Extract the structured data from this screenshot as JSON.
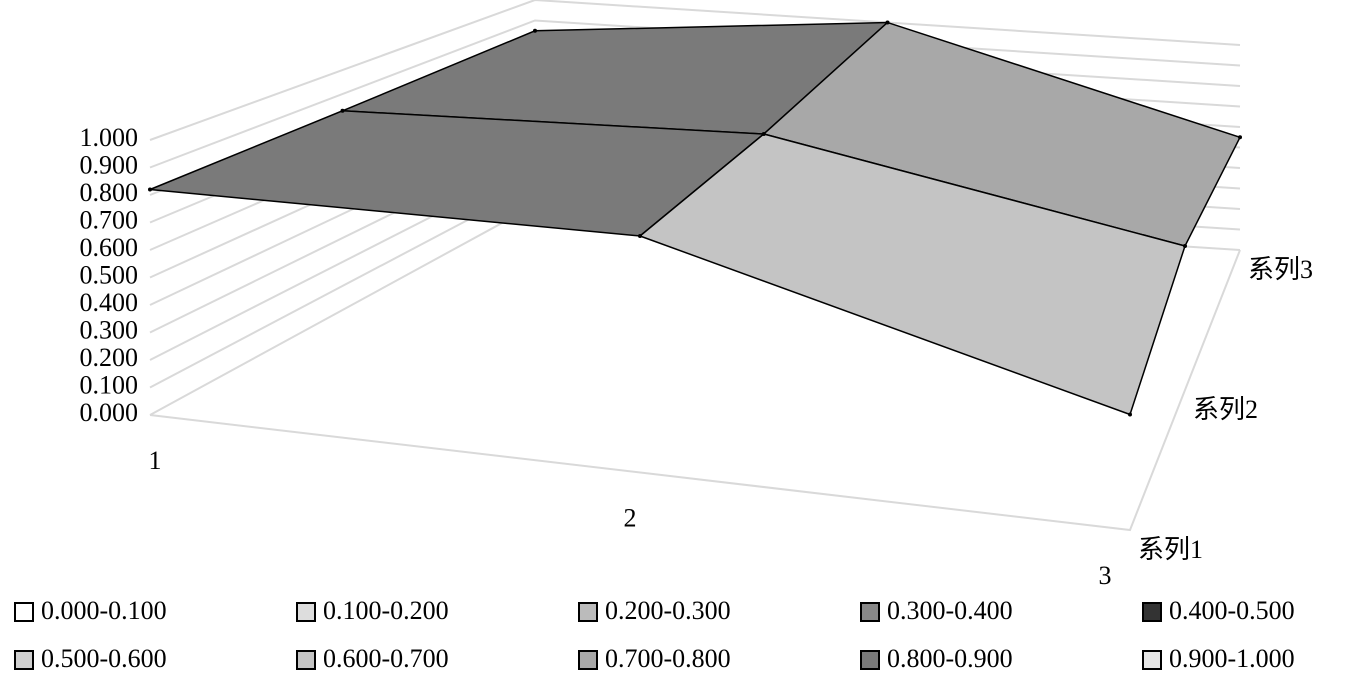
{
  "chart_data": {
    "type": "surface",
    "categories": [
      "1",
      "2",
      "3"
    ],
    "series": [
      {
        "name": "系列1",
        "values": [
          0.82,
          0.86,
          0.42
        ]
      },
      {
        "name": "系列2",
        "values": [
          0.83,
          0.9,
          0.6
        ]
      },
      {
        "name": "系列3",
        "values": [
          0.85,
          1.0,
          0.55
        ]
      }
    ],
    "zlim": [
      0,
      1
    ],
    "zticks": [
      {
        "value": 0,
        "label": "0.000"
      },
      {
        "value": 0.1,
        "label": "0.100"
      },
      {
        "value": 0.2,
        "label": "0.200"
      },
      {
        "value": 0.3,
        "label": "0.300"
      },
      {
        "value": 0.4,
        "label": "0.400"
      },
      {
        "value": 0.5,
        "label": "0.500"
      },
      {
        "value": 0.6,
        "label": "0.600"
      },
      {
        "value": 0.7,
        "label": "0.700"
      },
      {
        "value": 0.8,
        "label": "0.800"
      },
      {
        "value": 0.9,
        "label": "0.900"
      },
      {
        "value": 1,
        "label": "1.000"
      }
    ],
    "bands": [
      {
        "label": "0.000-0.100",
        "from": 0,
        "to": 0.1,
        "color": "#ffffff"
      },
      {
        "label": "0.100-0.200",
        "from": 0.1,
        "to": 0.2,
        "color": "#dddddd"
      },
      {
        "label": "0.200-0.300",
        "from": 0.2,
        "to": 0.3,
        "color": "#bbbbbb"
      },
      {
        "label": "0.300-0.400",
        "from": 0.3,
        "to": 0.4,
        "color": "#888888"
      },
      {
        "label": "0.400-0.500",
        "from": 0.4,
        "to": 0.5,
        "color": "#333333"
      },
      {
        "label": "0.500-0.600",
        "from": 0.5,
        "to": 0.6,
        "color": "#d0d0d0"
      },
      {
        "label": "0.600-0.700",
        "from": 0.6,
        "to": 0.7,
        "color": "#c4c4c4"
      },
      {
        "label": "0.700-0.800",
        "from": 0.7,
        "to": 0.8,
        "color": "#a8a8a8"
      },
      {
        "label": "0.800-0.900",
        "from": 0.8,
        "to": 0.9,
        "color": "#7a7a7a"
      },
      {
        "label": "0.900-1.000",
        "from": 0.9,
        "to": 1,
        "color": "#e6e6e6"
      }
    ]
  }
}
